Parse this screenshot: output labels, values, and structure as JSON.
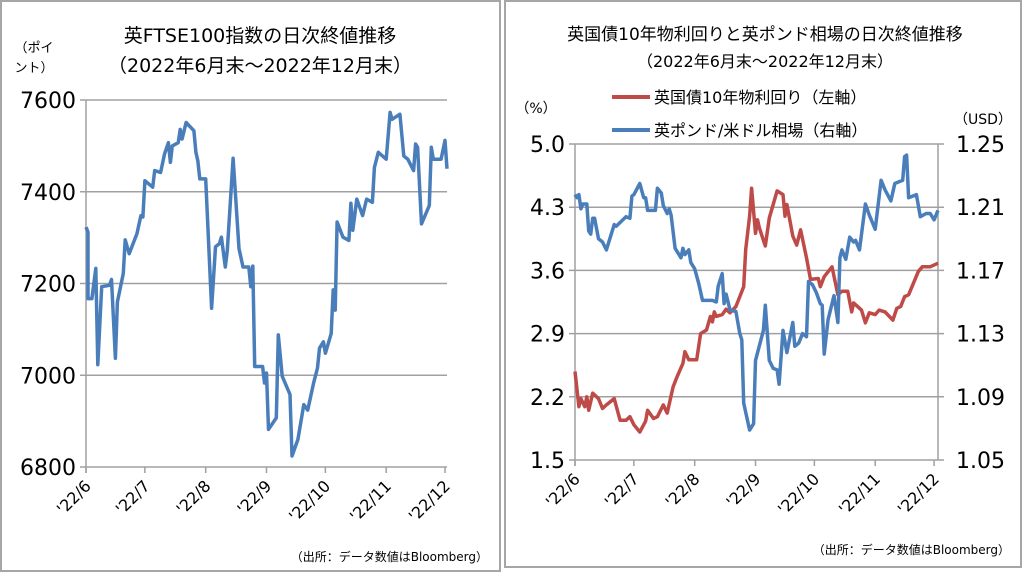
{
  "colors": {
    "ftse": "#4a7ebb",
    "yield": "#be4b48",
    "gbpusd": "#4a7ebb",
    "grid": "#a0a0a0",
    "border": "#a6a6a6"
  },
  "chart_data": [
    {
      "type": "line",
      "title": "英FTSE100指数の日次終値推移",
      "subtitle": "（2022年6月末～2022年12月末）",
      "ylabel": "（ポイント）",
      "ylabel_lines": [
        "（ポイ",
        "ント）"
      ],
      "ylim": [
        6800,
        7600
      ],
      "yticks": [
        "6800",
        "7000",
        "7200",
        "7400",
        "7600"
      ],
      "ytick_values": [
        6800,
        7000,
        7200,
        7400,
        7600
      ],
      "xlim_days": [
        0,
        184
      ],
      "xticks": [
        "'22/6",
        "'22/7",
        "'22/8",
        "'22/9",
        "'22/10",
        "'22/11",
        "'22/12"
      ],
      "xtick_days": [
        0,
        30,
        61,
        92,
        122,
        153,
        183
      ],
      "grid": true,
      "source": "（出所：データ数値はBloomberg）",
      "series": [
        {
          "name": "FTSE100",
          "x_days": [
            0,
            1,
            1,
            3,
            5,
            6,
            8,
            12,
            13,
            15,
            16,
            19,
            20,
            22,
            26,
            28,
            29,
            30,
            34,
            35,
            38,
            40,
            42,
            43,
            44,
            47,
            48,
            49,
            51,
            55,
            56,
            57,
            58,
            61,
            64,
            66,
            68,
            69,
            71,
            72,
            75,
            78,
            80,
            83,
            84,
            85,
            86,
            90,
            91,
            92,
            93,
            97,
            98,
            100,
            104,
            105,
            108,
            111,
            113,
            116,
            118,
            119,
            121,
            122,
            125,
            126,
            127,
            128,
            131,
            134,
            135,
            136,
            138,
            141,
            143,
            146,
            147,
            149,
            153,
            155,
            156,
            160,
            162,
            164,
            167,
            168,
            169,
            171,
            175,
            176,
            177,
            181,
            183,
            184
          ],
          "values": [
            7323,
            7312,
            7167,
            7167,
            7233,
            7023,
            7193,
            7196,
            7209,
            7037,
            7160,
            7222,
            7295,
            7265,
            7309,
            7348,
            7345,
            7424,
            7410,
            7446,
            7442,
            7482,
            7507,
            7464,
            7500,
            7507,
            7536,
            7515,
            7551,
            7533,
            7486,
            7468,
            7428,
            7428,
            7146,
            7280,
            7287,
            7301,
            7236,
            7272,
            7473,
            7276,
            7236,
            7236,
            7193,
            7238,
            7019,
            7019,
            6983,
            7005,
            6882,
            6907,
            7088,
            6998,
            6958,
            6824,
            6860,
            6936,
            6924,
            6983,
            7016,
            7059,
            7073,
            7048,
            7091,
            7186,
            7142,
            7334,
            7301,
            7294,
            7375,
            7316,
            7384,
            7348,
            7384,
            7377,
            7453,
            7486,
            7471,
            7573,
            7558,
            7569,
            7478,
            7471,
            7446,
            7504,
            7497,
            7330,
            7370,
            7497,
            7471,
            7471,
            7512,
            7450
          ]
        }
      ]
    },
    {
      "type": "line",
      "title": "英国債10年物利回りと英ポンド相場の日次終値推移",
      "subtitle": "（2022年6月末～2022年12月末）",
      "ylabel_left": "（%）",
      "ylabel_right": "（USD）",
      "ylim_left": [
        1.5,
        5.0
      ],
      "ylim_right": [
        1.05,
        1.25
      ],
      "yticks_left": [
        "1.5",
        "2.2",
        "2.9",
        "3.6",
        "4.3",
        "5.0"
      ],
      "yticks_right": [
        "1.05",
        "1.09",
        "1.13",
        "1.17",
        "1.21",
        "1.25"
      ],
      "xlim_days": [
        0,
        185
      ],
      "xticks": [
        "'22/6",
        "'22/7",
        "'22/8",
        "'22/9",
        "'22/10",
        "'22/11",
        "'22/12"
      ],
      "xtick_days": [
        0,
        30,
        61,
        92,
        122,
        153,
        183
      ],
      "grid": true,
      "legend": "top",
      "source": "（出所：データ数値はBloomberg）",
      "series": [
        {
          "name": "英国債10年物利回り（左軸）",
          "axis": "left",
          "x_days": [
            0,
            2,
            3,
            5,
            6,
            7,
            9,
            12,
            14,
            16,
            20,
            23,
            26,
            28,
            30,
            33,
            36,
            37,
            40,
            42,
            45,
            47,
            50,
            52,
            55,
            56,
            58,
            62,
            64,
            67,
            69,
            70,
            71,
            72,
            75,
            77,
            79,
            82,
            84,
            86,
            87,
            89,
            90,
            92,
            93,
            94,
            97,
            99,
            103,
            106,
            107,
            108,
            111,
            113,
            115,
            118,
            120,
            124,
            125,
            127,
            131,
            134,
            136,
            139,
            141,
            142,
            146,
            148,
            150,
            153,
            155,
            158,
            162,
            164,
            166,
            168,
            170,
            175,
            177,
            181,
            185
          ],
          "values": [
            2.48,
            2.09,
            2.18,
            2.09,
            2.2,
            2.05,
            2.24,
            2.18,
            2.07,
            2.11,
            2.18,
            1.94,
            1.94,
            1.98,
            1.89,
            1.81,
            1.93,
            2.05,
            1.96,
            1.98,
            2.11,
            2.02,
            2.31,
            2.42,
            2.57,
            2.7,
            2.61,
            2.61,
            2.9,
            2.94,
            3.09,
            3.03,
            3.14,
            3.09,
            3.11,
            3.17,
            3.13,
            3.2,
            3.31,
            3.42,
            3.83,
            4.2,
            4.51,
            4.01,
            4.16,
            4.07,
            3.87,
            4.18,
            4.48,
            4.44,
            4.2,
            4.33,
            3.98,
            3.88,
            4.05,
            3.74,
            3.5,
            3.51,
            3.42,
            3.53,
            3.64,
            3.33,
            3.37,
            3.37,
            3.14,
            3.24,
            3.16,
            3.02,
            3.13,
            3.11,
            3.16,
            3.14,
            3.05,
            3.18,
            3.2,
            3.31,
            3.33,
            3.59,
            3.64,
            3.64,
            3.68
          ]
        },
        {
          "name": "英ポンド/米ドル相場（右軸）",
          "axis": "right",
          "x_days": [
            0,
            1,
            2,
            3,
            4,
            6,
            7,
            8,
            9,
            10,
            12,
            14,
            16,
            18,
            20,
            21,
            26,
            28,
            29,
            30,
            33,
            35,
            36,
            37,
            40,
            41,
            42,
            44,
            45,
            47,
            48,
            49,
            51,
            54,
            55,
            56,
            58,
            59,
            61,
            63,
            65,
            70,
            72,
            73,
            75,
            76,
            77,
            79,
            82,
            84,
            85,
            86,
            89,
            91,
            92,
            96,
            97,
            99,
            101,
            103,
            104,
            106,
            108,
            111,
            112,
            114,
            116,
            118,
            119,
            121,
            123,
            125,
            126,
            127,
            129,
            132,
            134,
            135,
            136,
            138,
            140,
            142,
            143,
            145,
            148,
            150,
            153,
            156,
            158,
            161,
            163,
            167,
            168,
            169,
            170,
            174,
            176,
            179,
            181,
            183,
            185
          ],
          "values": [
            1.218,
            1.216,
            1.218,
            1.209,
            1.212,
            1.212,
            1.195,
            1.193,
            1.203,
            1.203,
            1.19,
            1.188,
            1.183,
            1.191,
            1.199,
            1.198,
            1.204,
            1.203,
            1.217,
            1.218,
            1.225,
            1.216,
            1.216,
            1.208,
            1.208,
            1.208,
            1.222,
            1.219,
            1.211,
            1.206,
            1.209,
            1.205,
            1.184,
            1.178,
            1.184,
            1.18,
            1.183,
            1.175,
            1.171,
            1.162,
            1.151,
            1.151,
            1.15,
            1.16,
            1.168,
            1.149,
            1.155,
            1.145,
            1.144,
            1.13,
            1.126,
            1.086,
            1.069,
            1.073,
            1.113,
            1.132,
            1.148,
            1.113,
            1.108,
            1.107,
            1.098,
            1.132,
            1.118,
            1.137,
            1.122,
            1.124,
            1.13,
            1.128,
            1.163,
            1.161,
            1.156,
            1.149,
            1.148,
            1.117,
            1.139,
            1.154,
            1.137,
            1.178,
            1.183,
            1.177,
            1.191,
            1.188,
            1.189,
            1.183,
            1.212,
            1.205,
            1.196,
            1.227,
            1.221,
            1.214,
            1.225,
            1.227,
            1.242,
            1.243,
            1.216,
            1.218,
            1.204,
            1.206,
            1.206,
            1.202,
            1.208
          ]
        }
      ]
    }
  ]
}
